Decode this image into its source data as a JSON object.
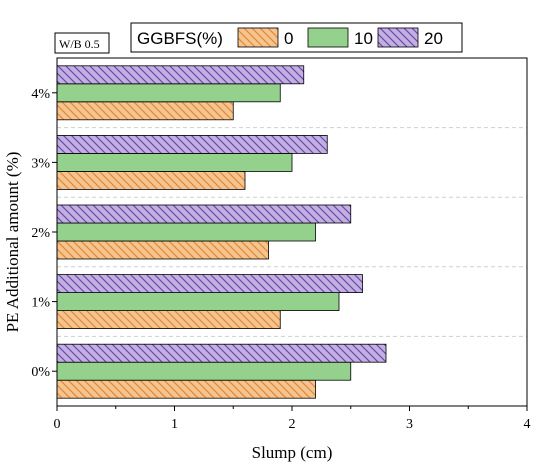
{
  "chart_data": {
    "type": "bar",
    "orientation": "horizontal",
    "categories": [
      "0%",
      "1%",
      "2%",
      "3%",
      "4%"
    ],
    "series": [
      {
        "name": "0",
        "values": [
          2.2,
          1.9,
          1.8,
          1.6,
          1.5
        ],
        "color": "#f6c48f",
        "pattern": "hatch-back-diagonal",
        "pattern_color": "#e0893a"
      },
      {
        "name": "10",
        "values": [
          2.5,
          2.4,
          2.2,
          2.0,
          1.9
        ],
        "color": "#93d18c",
        "pattern": "solid"
      },
      {
        "name": "20",
        "values": [
          2.8,
          2.6,
          2.5,
          2.3,
          2.1
        ],
        "color": "#c3b0e2",
        "pattern": "hatch-back-diagonal",
        "pattern_color": "#6b4aa8"
      }
    ],
    "xlabel": "Slump (cm)",
    "ylabel": "PE Additional amount (%)",
    "xlim": [
      0,
      4
    ],
    "xticks": [
      "0",
      "1",
      "2",
      "3",
      "4"
    ],
    "legend_title": "GGBFS(%)",
    "legend_position": "top",
    "annotation": "W/B 0.5",
    "grid": "horizontal dashed separators"
  }
}
